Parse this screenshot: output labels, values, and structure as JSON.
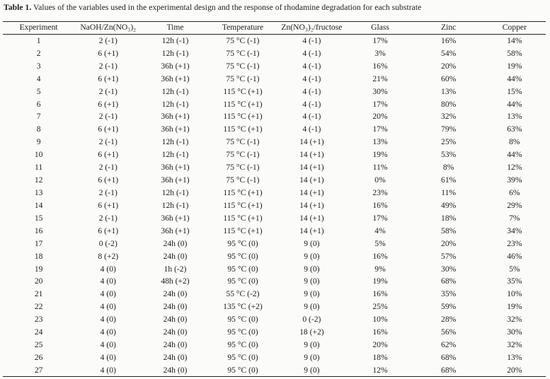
{
  "title": {
    "label": "Table 1.",
    "text": "Values of the variables used in the experimental design and the response of rhodamine degradation for each substrate"
  },
  "table": {
    "headers": [
      "Experiment",
      "NaOH/Zn(NO₃)₂",
      "Time",
      "Temperature",
      "Zn(NO₃)₂/fructose",
      "Glass",
      "Zinc",
      "Copper"
    ],
    "rows": [
      [
        "1",
        "2 (-1)",
        "12h (-1)",
        "75 °C (-1)",
        "4 (-1)",
        "17%",
        "16%",
        "14%"
      ],
      [
        "2",
        "6 (+1)",
        "12h (-1)",
        "75 °C (-1)",
        "4 (-1)",
        "3%",
        "54%",
        "58%"
      ],
      [
        "3",
        "2 (-1)",
        "36h (+1)",
        "75 °C (-1)",
        "4 (-1)",
        "16%",
        "20%",
        "19%"
      ],
      [
        "4",
        "6 (+1)",
        "36h (+1)",
        "75 °C (-1)",
        "4 (-1)",
        "21%",
        "60%",
        "44%"
      ],
      [
        "5",
        "2 (-1)",
        "12h (-1)",
        "115 °C (+1)",
        "4 (-1)",
        "30%",
        "13%",
        "15%"
      ],
      [
        "6",
        "6 (+1)",
        "12h (-1)",
        "115 °C (+1)",
        "4 (-1)",
        "17%",
        "80%",
        "44%"
      ],
      [
        "7",
        "2 (-1)",
        "36h (+1)",
        "115 °C (+1)",
        "4 (-1)",
        "20%",
        "32%",
        "13%"
      ],
      [
        "8",
        "6 (+1)",
        "36h (+1)",
        "115 °C (+1)",
        "4 (-1)",
        "17%",
        "79%",
        "63%"
      ],
      [
        "9",
        "2 (-1)",
        "12h (-1)",
        "75 °C (-1)",
        "14 (+1)",
        "13%",
        "25%",
        "8%"
      ],
      [
        "10",
        "6 (+1)",
        "12h (-1)",
        "75 °C (-1)",
        "14 (+1)",
        "19%",
        "53%",
        "44%"
      ],
      [
        "11",
        "2 (-1)",
        "36h (+1)",
        "75 °C (-1)",
        "14 (+1)",
        "11%",
        "8%",
        "12%"
      ],
      [
        "12",
        "6 (+1)",
        "36h (+1)",
        "75 °C (-1)",
        "14 (+1)",
        "0%",
        "61%",
        "39%"
      ],
      [
        "13",
        "2 (-1)",
        "12h (-1)",
        "115 °C (+1)",
        "14 (+1)",
        "23%",
        "11%",
        "6%"
      ],
      [
        "14",
        "6 (+1)",
        "12h (-1)",
        "115 °C (+1)",
        "14 (+1)",
        "16%",
        "49%",
        "29%"
      ],
      [
        "15",
        "2 (-1)",
        "36h (+1)",
        "115 °C (+1)",
        "14 (+1)",
        "17%",
        "18%",
        "7%"
      ],
      [
        "16",
        "6 (+1)",
        "36h (+1)",
        "115 °C (+1)",
        "14 (+1)",
        "4%",
        "58%",
        "34%"
      ],
      [
        "17",
        "0 (-2)",
        "24h (0)",
        "95 °C (0)",
        "9 (0)",
        "5%",
        "20%",
        "23%"
      ],
      [
        "18",
        "8 (+2)",
        "24h (0)",
        "95 °C (0)",
        "9 (0)",
        "16%",
        "57%",
        "46%"
      ],
      [
        "19",
        "4 (0)",
        "1h (-2)",
        "95 °C (0)",
        "9 (0)",
        "9%",
        "30%",
        "5%"
      ],
      [
        "20",
        "4 (0)",
        "48h (+2)",
        "95 °C (0)",
        "9 (0)",
        "19%",
        "68%",
        "35%"
      ],
      [
        "21",
        "4 (0)",
        "24h (0)",
        "55 °C (-2)",
        "9 (0)",
        "16%",
        "35%",
        "10%"
      ],
      [
        "22",
        "4 (0)",
        "24h (0)",
        "135 °C (+2)",
        "9 (0)",
        "25%",
        "59%",
        "19%"
      ],
      [
        "23",
        "4 (0)",
        "24h (0)",
        "95 °C (0)",
        "0 (-2)",
        "10%",
        "28%",
        "32%"
      ],
      [
        "24",
        "4 (0)",
        "24h (0)",
        "95 °C (0)",
        "18 (+2)",
        "16%",
        "56%",
        "30%"
      ],
      [
        "25",
        "4 (0)",
        "24h (0)",
        "95 °C (0)",
        "9 (0)",
        "20%",
        "62%",
        "32%"
      ],
      [
        "26",
        "4 (0)",
        "24h (0)",
        "95 °C (0)",
        "9 (0)",
        "18%",
        "68%",
        "13%"
      ],
      [
        "27",
        "4 (0)",
        "24h (0)",
        "95 °C (0)",
        "9 (0)",
        "12%",
        "68%",
        "20%"
      ]
    ]
  }
}
